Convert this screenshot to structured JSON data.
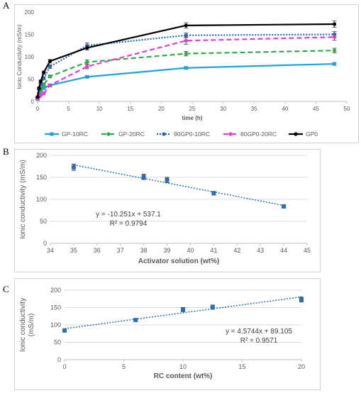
{
  "chart_data": [
    {
      "panel_label": "A",
      "type": "line",
      "xlabel": "time (h)",
      "ylabel": "Ionic Conductivity (mS/m)",
      "xlim": [
        0,
        50
      ],
      "ylim": [
        0,
        200
      ],
      "xticks": [
        "0",
        "5",
        "10",
        "15",
        "20",
        "25",
        "30",
        "35",
        "40",
        "45",
        "50"
      ],
      "yticks": [
        "0",
        "50",
        "100",
        "150",
        "200"
      ],
      "legend_position": "bottom",
      "series": [
        {
          "name": "GP-10RC",
          "color": "#1fa2e0",
          "dash": "solid",
          "marker": "square",
          "x": [
            0,
            0.25,
            0.5,
            1,
            2,
            8,
            24,
            48
          ],
          "y": [
            5,
            18,
            24,
            30,
            36,
            55,
            75,
            84
          ],
          "err": [
            1,
            1,
            1,
            2,
            2,
            2,
            3,
            3
          ]
        },
        {
          "name": "GP-20RC",
          "color": "#2eac4a",
          "dash": "dashed",
          "marker": "circle",
          "x": [
            0,
            0.25,
            0.5,
            1,
            2,
            8,
            24,
            48
          ],
          "y": [
            7,
            16,
            26,
            38,
            56,
            88,
            107,
            114
          ],
          "err": [
            1,
            2,
            2,
            3,
            3,
            5,
            5,
            5
          ]
        },
        {
          "name": "90GP0-10RC",
          "color": "#2469b8",
          "dash": "dotted",
          "marker": "circle",
          "x": [
            0,
            0.25,
            0.5,
            1,
            2,
            8,
            24,
            48
          ],
          "y": [
            10,
            28,
            38,
            52,
            78,
            125,
            148,
            150
          ],
          "err": [
            1,
            2,
            3,
            3,
            4,
            6,
            5,
            6
          ]
        },
        {
          "name": "80GP0-20RC",
          "color": "#e83ad6",
          "dash": "dashed",
          "marker": "circle",
          "x": [
            0,
            0.25,
            0.5,
            1,
            2,
            8,
            24,
            48
          ],
          "y": [
            6,
            10,
            14,
            18,
            36,
            78,
            136,
            144
          ],
          "err": [
            1,
            1,
            2,
            2,
            3,
            5,
            8,
            7
          ]
        },
        {
          "name": "GP0",
          "color": "#000000",
          "dash": "solid",
          "marker": "circle",
          "x": [
            0,
            0.25,
            0.5,
            1,
            2,
            8,
            24,
            48
          ],
          "y": [
            10,
            30,
            45,
            65,
            90,
            120,
            170,
            173
          ],
          "err": [
            1,
            2,
            3,
            3,
            4,
            5,
            6,
            7
          ]
        }
      ]
    },
    {
      "panel_label": "B",
      "type": "scatter",
      "xlabel": "Activator solution (wt%)",
      "ylabel": "Ionic conductivity (mS/m)",
      "xlim": [
        34,
        45
      ],
      "ylim": [
        0,
        200
      ],
      "xticks": [
        "34",
        "35",
        "36",
        "37",
        "38",
        "39",
        "40",
        "41",
        "42",
        "43",
        "44",
        "45"
      ],
      "yticks": [
        "0",
        "50",
        "100",
        "150",
        "200"
      ],
      "x": [
        35,
        38,
        39,
        41,
        44
      ],
      "y": [
        173,
        151,
        144,
        114,
        84
      ],
      "err": [
        7,
        6,
        6,
        4,
        3
      ],
      "color": "#2e6db5",
      "trendline": {
        "slope": -10.251,
        "intercept": 537.1,
        "x_range": [
          35,
          44
        ]
      },
      "annotations": [
        "y = -10.251x + 537.1",
        "R² = 0.9794"
      ]
    },
    {
      "panel_label": "C",
      "type": "scatter",
      "xlabel": "RC content (wt%)",
      "ylabel": [
        "Ionic conductivity",
        "(mS/m)"
      ],
      "xlim": [
        0,
        20
      ],
      "ylim": [
        0,
        200
      ],
      "xticks": [
        "0",
        "5",
        "10",
        "15",
        "20"
      ],
      "yticks": [
        "0",
        "50",
        "100",
        "150",
        "200"
      ],
      "x": [
        0,
        6,
        10,
        12.5,
        20
      ],
      "y": [
        84,
        114,
        144,
        151,
        173
      ],
      "err": [
        3,
        4,
        6,
        6,
        7
      ],
      "color": "#2e6db5",
      "trendline": {
        "slope": 4.5744,
        "intercept": 89.105,
        "x_range": [
          0,
          20
        ]
      },
      "annotations": [
        "y = 4.5744x + 89.105",
        "R² = 0.9571"
      ]
    }
  ]
}
